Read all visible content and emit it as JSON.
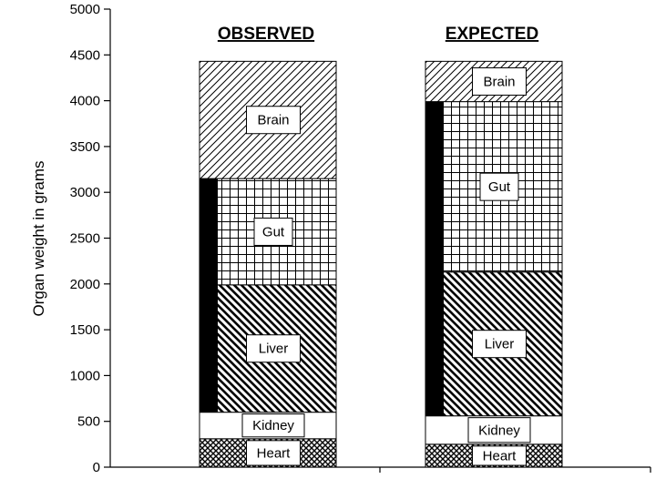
{
  "chart_data": {
    "type": "bar",
    "stacked": true,
    "ylabel": "Organ weight in grams",
    "ylim": [
      0,
      5000
    ],
    "yticks": [
      0,
      500,
      1000,
      1500,
      2000,
      2500,
      3000,
      3500,
      4000,
      4500,
      5000
    ],
    "grid": false,
    "categories": [
      "OBSERVED",
      "EXPECTED"
    ],
    "series": [
      {
        "name": "Heart",
        "values": [
          310,
          250
        ],
        "pattern": "crosshatch-dense"
      },
      {
        "name": "Kidney",
        "values": [
          290,
          310
        ],
        "pattern": "white"
      },
      {
        "name": "Liver",
        "values": [
          1390,
          1570
        ],
        "pattern": "diagonal-back"
      },
      {
        "name": "Gut",
        "values": [
          1160,
          1860
        ],
        "pattern": "grid"
      },
      {
        "name": "Brain",
        "values": [
          1280,
          440
        ],
        "pattern": "diagonal-forward"
      }
    ],
    "black_band": [
      {
        "from": 600,
        "to": 3150
      },
      {
        "from": 560,
        "to": 3990
      }
    ],
    "colors": {
      "fill": "#000000",
      "background": "#ffffff"
    }
  }
}
